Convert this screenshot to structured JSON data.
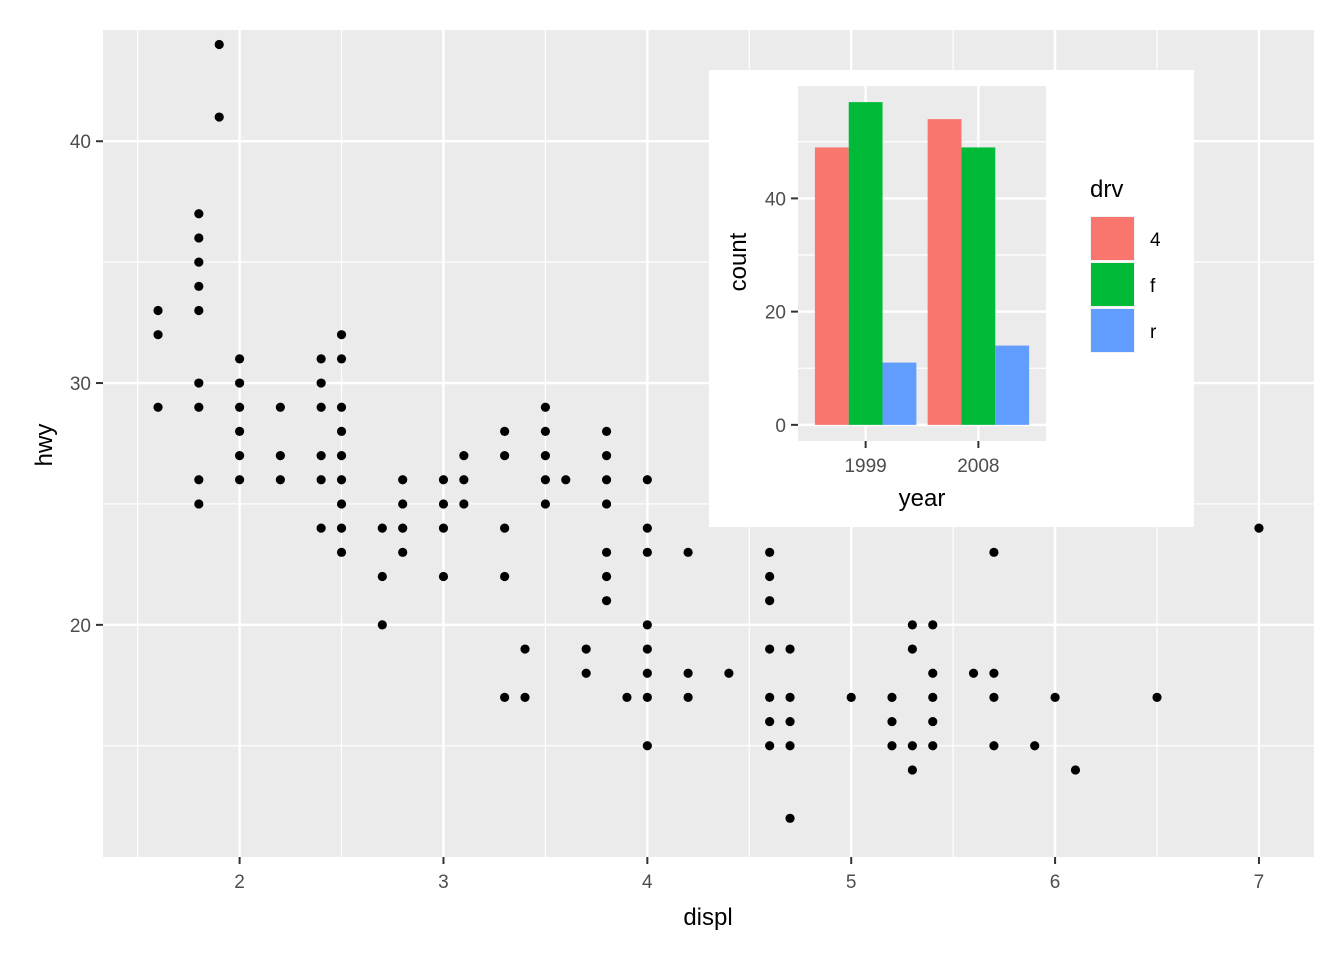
{
  "chart_data": [
    {
      "type": "scatter",
      "xlabel": "displ",
      "ylabel": "hwy",
      "xlim": [
        1.33,
        7.27
      ],
      "ylim": [
        10.4,
        44.6
      ],
      "x_ticks": [
        2,
        3,
        4,
        5,
        6,
        7
      ],
      "x_tick_labels": [
        "2",
        "3",
        "4",
        "5",
        "6",
        "7"
      ],
      "y_ticks": [
        20,
        30,
        40
      ],
      "y_tick_labels": [
        "20",
        "30",
        "40"
      ],
      "grid": true,
      "colors": {
        "panel": "#ebebeb",
        "grid": "#ffffff",
        "point": "#000000"
      },
      "points": [
        [
          1.6,
          33
        ],
        [
          1.6,
          32
        ],
        [
          1.6,
          29
        ],
        [
          1.8,
          37
        ],
        [
          1.8,
          36
        ],
        [
          1.8,
          35
        ],
        [
          1.8,
          34
        ],
        [
          1.8,
          33
        ],
        [
          1.8,
          30
        ],
        [
          1.8,
          29
        ],
        [
          1.8,
          26
        ],
        [
          1.8,
          25
        ],
        [
          1.9,
          44
        ],
        [
          1.9,
          41
        ],
        [
          2.0,
          31
        ],
        [
          2.0,
          30
        ],
        [
          2.0,
          29
        ],
        [
          2.0,
          28
        ],
        [
          2.0,
          27
        ],
        [
          2.0,
          26
        ],
        [
          2.2,
          29
        ],
        [
          2.2,
          27
        ],
        [
          2.2,
          26
        ],
        [
          2.4,
          31
        ],
        [
          2.4,
          30
        ],
        [
          2.4,
          29
        ],
        [
          2.4,
          27
        ],
        [
          2.4,
          26
        ],
        [
          2.4,
          24
        ],
        [
          2.5,
          32
        ],
        [
          2.5,
          31
        ],
        [
          2.5,
          29
        ],
        [
          2.5,
          28
        ],
        [
          2.5,
          27
        ],
        [
          2.5,
          26
        ],
        [
          2.5,
          25
        ],
        [
          2.5,
          24
        ],
        [
          2.5,
          23
        ],
        [
          2.7,
          24
        ],
        [
          2.7,
          22
        ],
        [
          2.7,
          20
        ],
        [
          2.8,
          26
        ],
        [
          2.8,
          25
        ],
        [
          2.8,
          24
        ],
        [
          2.8,
          23
        ],
        [
          3.0,
          26
        ],
        [
          3.0,
          25
        ],
        [
          3.0,
          24
        ],
        [
          3.0,
          22
        ],
        [
          3.1,
          27
        ],
        [
          3.1,
          26
        ],
        [
          3.1,
          25
        ],
        [
          3.3,
          28
        ],
        [
          3.3,
          27
        ],
        [
          3.3,
          24
        ],
        [
          3.3,
          22
        ],
        [
          3.3,
          17
        ],
        [
          3.4,
          19
        ],
        [
          3.4,
          17
        ],
        [
          3.5,
          29
        ],
        [
          3.5,
          28
        ],
        [
          3.5,
          27
        ],
        [
          3.5,
          26
        ],
        [
          3.5,
          25
        ],
        [
          3.6,
          26
        ],
        [
          3.7,
          19
        ],
        [
          3.7,
          18
        ],
        [
          3.8,
          28
        ],
        [
          3.8,
          27
        ],
        [
          3.8,
          26
        ],
        [
          3.8,
          25
        ],
        [
          3.8,
          23
        ],
        [
          3.8,
          22
        ],
        [
          3.8,
          21
        ],
        [
          3.9,
          17
        ],
        [
          4.0,
          26
        ],
        [
          4.0,
          24
        ],
        [
          4.0,
          23
        ],
        [
          4.0,
          20
        ],
        [
          4.0,
          19
        ],
        [
          4.0,
          18
        ],
        [
          4.0,
          17
        ],
        [
          4.0,
          15
        ],
        [
          4.2,
          23
        ],
        [
          4.2,
          18
        ],
        [
          4.2,
          17
        ],
        [
          4.4,
          18
        ],
        [
          4.6,
          23
        ],
        [
          4.6,
          22
        ],
        [
          4.6,
          21
        ],
        [
          4.6,
          19
        ],
        [
          4.6,
          17
        ],
        [
          4.6,
          16
        ],
        [
          4.6,
          15
        ],
        [
          4.7,
          19
        ],
        [
          4.7,
          17
        ],
        [
          4.7,
          16
        ],
        [
          4.7,
          15
        ],
        [
          4.7,
          12
        ],
        [
          5.0,
          17
        ],
        [
          5.2,
          17
        ],
        [
          5.2,
          16
        ],
        [
          5.2,
          15
        ],
        [
          5.3,
          20
        ],
        [
          5.3,
          19
        ],
        [
          5.3,
          15
        ],
        [
          5.3,
          14
        ],
        [
          5.4,
          20
        ],
        [
          5.4,
          18
        ],
        [
          5.4,
          17
        ],
        [
          5.4,
          16
        ],
        [
          5.4,
          15
        ],
        [
          5.6,
          18
        ],
        [
          5.7,
          23
        ],
        [
          5.7,
          18
        ],
        [
          5.7,
          17
        ],
        [
          5.7,
          15
        ],
        [
          5.9,
          15
        ],
        [
          6.0,
          17
        ],
        [
          6.1,
          14
        ],
        [
          6.5,
          17
        ],
        [
          7.0,
          24
        ]
      ]
    },
    {
      "type": "bar",
      "xlabel": "year",
      "ylabel": "count",
      "categories": [
        "1999",
        "2008"
      ],
      "ylim": [
        -2.85,
        59.85
      ],
      "y_ticks": [
        0,
        20,
        40
      ],
      "y_tick_labels": [
        "0",
        "20",
        "40"
      ],
      "grid": true,
      "legend_title": "drv",
      "legend_position": "right",
      "series": [
        {
          "name": "4",
          "color": "#F8766D",
          "values": [
            49,
            54
          ]
        },
        {
          "name": "f",
          "color": "#00BA38",
          "values": [
            57,
            49
          ]
        },
        {
          "name": "r",
          "color": "#619CFF",
          "values": [
            11,
            14
          ]
        }
      ]
    }
  ]
}
